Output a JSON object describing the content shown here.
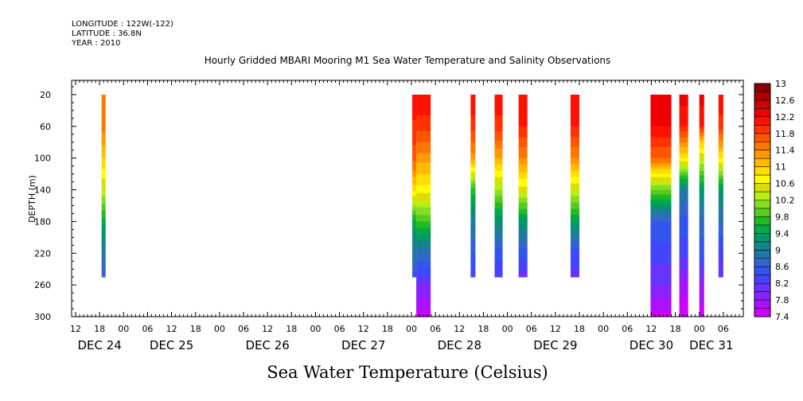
{
  "header": {
    "longitude": "LONGITUDE : 122W(-122)",
    "latitude": "LATITUDE : 36.8N",
    "year": "YEAR : 2010"
  },
  "chart_data": {
    "type": "heatmap",
    "title": "Hourly Gridded MBARI Mooring M1 Sea Water Temperature and Salinity Observations",
    "xlabel": "Sea Water Temperature (Celsius)",
    "ylabel": "DEPTH (m)",
    "ylim": [
      300,
      0
    ],
    "y_ticks": [
      20,
      60,
      100,
      140,
      180,
      220,
      260,
      300
    ],
    "x_unit": "hours since 2010-12-24 00:00",
    "xlim": [
      -13,
      155
    ],
    "hour_ticks": [
      {
        "t": -12,
        "label": "12"
      },
      {
        "t": -6,
        "label": "18"
      },
      {
        "t": 0,
        "label": "00"
      },
      {
        "t": 6,
        "label": "06"
      },
      {
        "t": 12,
        "label": "12"
      },
      {
        "t": 18,
        "label": "18"
      },
      {
        "t": 24,
        "label": "00"
      },
      {
        "t": 30,
        "label": "06"
      },
      {
        "t": 36,
        "label": "12"
      },
      {
        "t": 42,
        "label": "18"
      },
      {
        "t": 48,
        "label": "00"
      },
      {
        "t": 54,
        "label": "06"
      },
      {
        "t": 60,
        "label": "12"
      },
      {
        "t": 66,
        "label": "18"
      },
      {
        "t": 72,
        "label": "00"
      },
      {
        "t": 78,
        "label": "06"
      },
      {
        "t": 84,
        "label": "12"
      },
      {
        "t": 90,
        "label": "18"
      },
      {
        "t": 96,
        "label": "00"
      },
      {
        "t": 102,
        "label": "06"
      },
      {
        "t": 108,
        "label": "12"
      },
      {
        "t": 114,
        "label": "18"
      },
      {
        "t": 120,
        "label": "00"
      },
      {
        "t": 126,
        "label": "06"
      },
      {
        "t": 132,
        "label": "12"
      },
      {
        "t": 138,
        "label": "18"
      },
      {
        "t": 144,
        "label": "00"
      },
      {
        "t": 150,
        "label": "06"
      }
    ],
    "day_labels": [
      {
        "t": -6,
        "label": "DEC 24"
      },
      {
        "t": 12,
        "label": "DEC 25"
      },
      {
        "t": 36,
        "label": "DEC 26"
      },
      {
        "t": 60,
        "label": "DEC 27"
      },
      {
        "t": 84,
        "label": "DEC 28"
      },
      {
        "t": 108,
        "label": "DEC 29"
      },
      {
        "t": 132,
        "label": "DEC 30"
      },
      {
        "t": 147,
        "label": "DEC 31"
      }
    ],
    "colorbar": {
      "min": 7.4,
      "max": 13.0,
      "step": 0.2,
      "tick_labels": [
        "13",
        "12.6",
        "12.2",
        "11.8",
        "11.4",
        "11",
        "10.6",
        "10.2",
        "9.8",
        "9.4",
        "9",
        "8.6",
        "8.2",
        "7.8",
        "7.4"
      ],
      "colors": [
        "#cc00ff",
        "#aa11ff",
        "#8822ff",
        "#6633ff",
        "#4444ff",
        "#3355ee",
        "#3366cc",
        "#2277aa",
        "#118888",
        "#009966",
        "#00aa44",
        "#22bb22",
        "#55cc22",
        "#88dd22",
        "#bbee11",
        "#dddd00",
        "#ffff00",
        "#ffdd00",
        "#ffbb00",
        "#ff9900",
        "#ff7700",
        "#ff5500",
        "#ff3300",
        "#ff1100",
        "#ee0000",
        "#cc0000",
        "#aa0000",
        "#880000"
      ]
    },
    "columns": [
      {
        "t0": -5.5,
        "t1": -4.5,
        "profile": [
          [
            20,
            11.6
          ],
          [
            60,
            11.5
          ],
          [
            100,
            11.0
          ],
          [
            140,
            10.4
          ],
          [
            180,
            9.5
          ],
          [
            220,
            8.9
          ],
          [
            250,
            8.6
          ]
        ]
      },
      {
        "t0": 72.2,
        "t1": 73.2,
        "profile": [
          [
            20,
            12.2
          ],
          [
            100,
            11.7
          ],
          [
            140,
            10.9
          ],
          [
            180,
            9.5
          ],
          [
            250,
            8.5
          ]
        ]
      },
      {
        "t0": 73.2,
        "t1": 76.8,
        "profile": [
          [
            20,
            12.2
          ],
          [
            60,
            11.9
          ],
          [
            100,
            11.3
          ],
          [
            140,
            10.7
          ],
          [
            180,
            9.8
          ],
          [
            220,
            8.8
          ],
          [
            260,
            8.0
          ],
          [
            300,
            7.5
          ]
        ]
      },
      {
        "t0": 86.8,
        "t1": 88.0,
        "profile": [
          [
            20,
            12.2
          ],
          [
            60,
            11.9
          ],
          [
            100,
            11.3
          ],
          [
            140,
            9.7
          ],
          [
            180,
            9.0
          ],
          [
            220,
            8.6
          ],
          [
            250,
            8.3
          ]
        ]
      },
      {
        "t0": 92.8,
        "t1": 94.8,
        "profile": [
          [
            20,
            12.2
          ],
          [
            60,
            11.9
          ],
          [
            100,
            11.2
          ],
          [
            140,
            10.2
          ],
          [
            180,
            9.2
          ],
          [
            220,
            8.5
          ],
          [
            250,
            8.2
          ]
        ]
      },
      {
        "t0": 98.8,
        "t1": 101.0,
        "profile": [
          [
            20,
            12.2
          ],
          [
            60,
            12.0
          ],
          [
            100,
            11.4
          ],
          [
            140,
            10.5
          ],
          [
            180,
            9.3
          ],
          [
            220,
            8.5
          ],
          [
            250,
            8.1
          ]
        ]
      },
      {
        "t0": 111.8,
        "t1": 114.0,
        "profile": [
          [
            20,
            12.2
          ],
          [
            60,
            12.0
          ],
          [
            100,
            11.4
          ],
          [
            140,
            10.4
          ],
          [
            180,
            9.4
          ],
          [
            220,
            8.4
          ],
          [
            250,
            8.1
          ]
        ]
      },
      {
        "t0": 131.8,
        "t1": 137.0,
        "profile": [
          [
            20,
            12.4
          ],
          [
            60,
            12.2
          ],
          [
            100,
            11.6
          ],
          [
            140,
            10.0
          ],
          [
            180,
            8.6
          ],
          [
            220,
            8.3
          ],
          [
            260,
            8.0
          ],
          [
            300,
            7.5
          ]
        ]
      },
      {
        "t0": 139.0,
        "t1": 141.2,
        "profile": [
          [
            20,
            12.3
          ],
          [
            60,
            12.0
          ],
          [
            100,
            10.8
          ],
          [
            140,
            9.0
          ],
          [
            180,
            8.5
          ],
          [
            220,
            8.3
          ],
          [
            260,
            7.7
          ],
          [
            300,
            7.4
          ]
        ]
      },
      {
        "t0": 144.0,
        "t1": 145.2,
        "profile": [
          [
            20,
            12.3
          ],
          [
            60,
            12.0
          ],
          [
            80,
            11.0
          ],
          [
            140,
            9.3
          ],
          [
            180,
            8.7
          ],
          [
            220,
            8.5
          ],
          [
            260,
            7.8
          ],
          [
            300,
            7.5
          ]
        ]
      },
      {
        "t0": 148.8,
        "t1": 150.0,
        "profile": [
          [
            20,
            12.2
          ],
          [
            60,
            11.9
          ],
          [
            100,
            10.8
          ],
          [
            140,
            9.3
          ],
          [
            180,
            8.8
          ],
          [
            220,
            8.3
          ],
          [
            250,
            8.0
          ]
        ]
      }
    ]
  }
}
